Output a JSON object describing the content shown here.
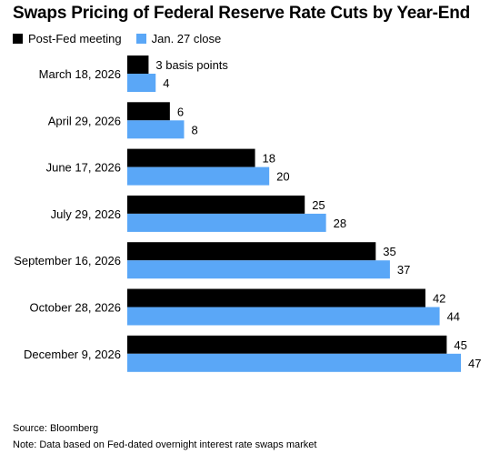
{
  "title": "Swaps Pricing of Federal Reserve Rate Cuts by Year-End",
  "legend": [
    {
      "label": "Post-Fed meeting",
      "color": "#000000"
    },
    {
      "label": "Jan. 27 close",
      "color": "#5aa7f7"
    }
  ],
  "source": "Source: Bloomberg",
  "note": "Note: Data based on Fed-dated overnight interest rate swaps market",
  "chart_data": {
    "type": "bar",
    "orientation": "horizontal",
    "categories": [
      "March 18, 2026",
      "April 29, 2026",
      "June 17, 2026",
      "July 29, 2026",
      "September 16, 2026",
      "October 28, 2026",
      "December 9, 2026"
    ],
    "series": [
      {
        "name": "Post-Fed meeting",
        "color": "#000000",
        "values": [
          3,
          6,
          18,
          25,
          35,
          42,
          45
        ]
      },
      {
        "name": "Jan. 27 close",
        "color": "#5aa7f7",
        "values": [
          4,
          8,
          20,
          28,
          37,
          44,
          47
        ]
      }
    ],
    "data_labels": [
      [
        "3 basis points",
        "6",
        "18",
        "25",
        "35",
        "42",
        "45"
      ],
      [
        "4",
        "8",
        "20",
        "28",
        "37",
        "44",
        "47"
      ]
    ],
    "xlim": [
      0,
      47
    ],
    "grid": false,
    "legend_position": "top-left"
  }
}
